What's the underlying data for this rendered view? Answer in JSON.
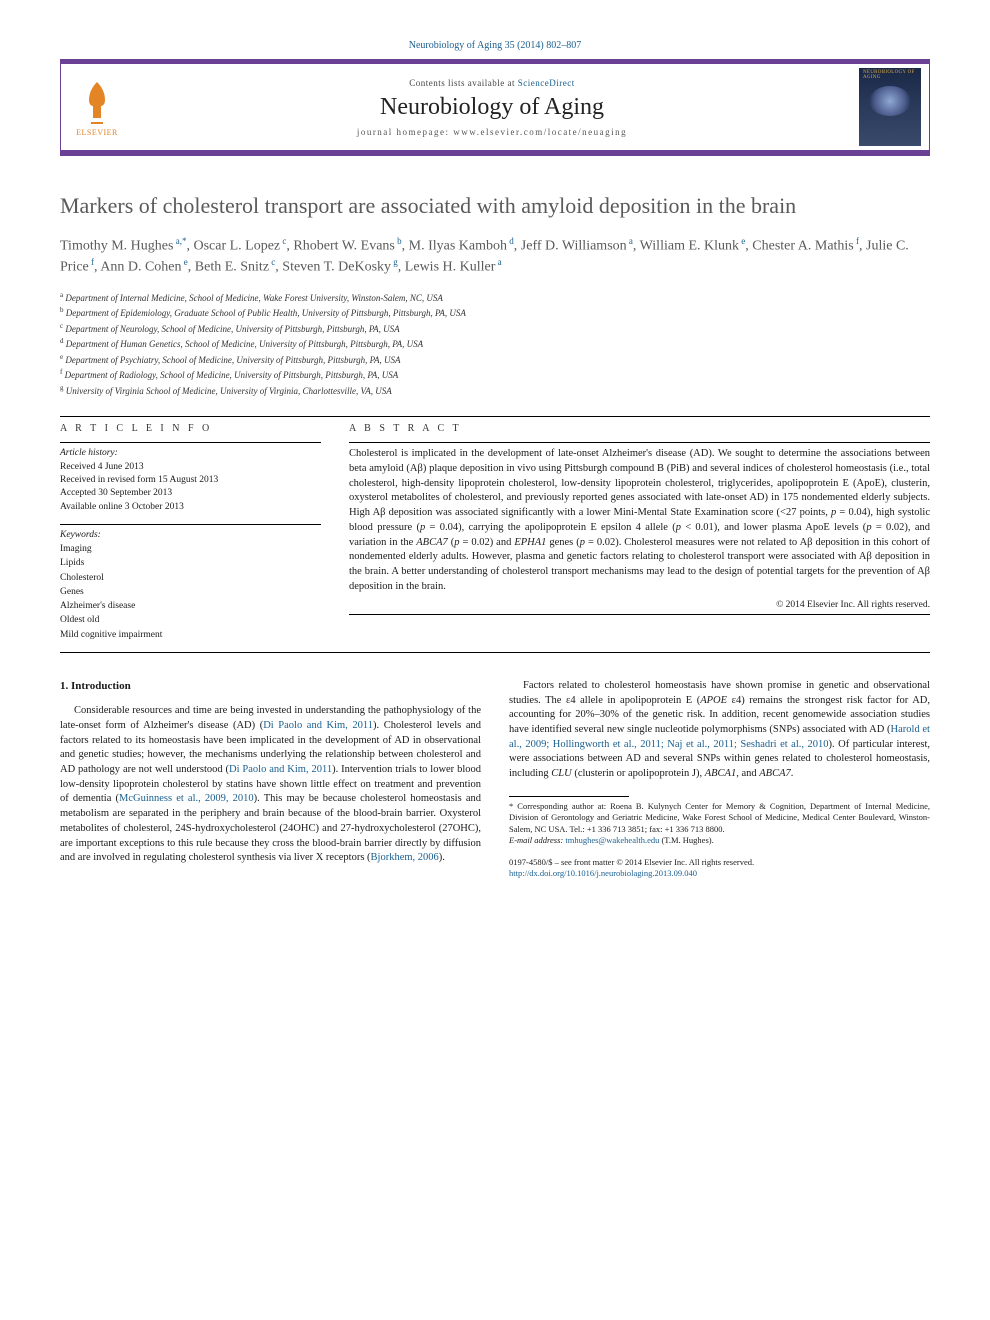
{
  "journal_ref": "Neurobiology of Aging 35 (2014) 802–807",
  "header": {
    "contents_prefix": "Contents lists available at ",
    "contents_link": "ScienceDirect",
    "journal_name": "Neurobiology of Aging",
    "homepage_prefix": "journal homepage: ",
    "homepage_url": "www.elsevier.com/locate/neuaging",
    "publisher": "ELSEVIER",
    "cover_label": "NEUROBIOLOGY OF AGING"
  },
  "title": "Markers of cholesterol transport are associated with amyloid deposition in the brain",
  "authors_html": "Timothy M. Hughes<sup> a,*</sup>, Oscar L. Lopez<sup> c</sup>, Rhobert W. Evans<sup> b</sup>, M. Ilyas Kamboh<sup> d</sup>, Jeff D. Williamson<sup> a</sup>, William E. Klunk<sup> e</sup>, Chester A. Mathis<sup> f</sup>, Julie C. Price<sup> f</sup>, Ann D. Cohen<sup> e</sup>, Beth E. Snitz<sup> c</sup>, Steven T. DeKosky<sup> g</sup>, Lewis H. Kuller<sup> a</sup>",
  "affiliations": [
    {
      "sup": "a",
      "text": "Department of Internal Medicine, School of Medicine, Wake Forest University, Winston-Salem, NC, USA"
    },
    {
      "sup": "b",
      "text": "Department of Epidemiology, Graduate School of Public Health, University of Pittsburgh, Pittsburgh, PA, USA"
    },
    {
      "sup": "c",
      "text": "Department of Neurology, School of Medicine, University of Pittsburgh, Pittsburgh, PA, USA"
    },
    {
      "sup": "d",
      "text": "Department of Human Genetics, School of Medicine, University of Pittsburgh, Pittsburgh, PA, USA"
    },
    {
      "sup": "e",
      "text": "Department of Psychiatry, School of Medicine, University of Pittsburgh, Pittsburgh, PA, USA"
    },
    {
      "sup": "f",
      "text": "Department of Radiology, School of Medicine, University of Pittsburgh, Pittsburgh, PA, USA"
    },
    {
      "sup": "g",
      "text": "University of Virginia School of Medicine, University of Virginia, Charlottesville, VA, USA"
    }
  ],
  "info": {
    "label": "A R T I C L E   I N F O",
    "history_heading": "Article history:",
    "history": [
      "Received 4 June 2013",
      "Received in revised form 15 August 2013",
      "Accepted 30 September 2013",
      "Available online 3 October 2013"
    ],
    "keywords_heading": "Keywords:",
    "keywords": [
      "Imaging",
      "Lipids",
      "Cholesterol",
      "Genes",
      "Alzheimer's disease",
      "Oldest old",
      "Mild cognitive impairment"
    ]
  },
  "abstract": {
    "label": "A B S T R A C T",
    "text": "Cholesterol is implicated in the development of late-onset Alzheimer's disease (AD). We sought to determine the associations between beta amyloid (Aβ) plaque deposition in vivo using Pittsburgh compound B (PiB) and several indices of cholesterol homeostasis (i.e., total cholesterol, high-density lipoprotein cholesterol, low-density lipoprotein cholesterol, triglycerides, apolipoprotein E (ApoE), clusterin, oxysterol metabolites of cholesterol, and previously reported genes associated with late-onset AD) in 175 nondemented elderly subjects. High Aβ deposition was associated significantly with a lower Mini-Mental State Examination score (<27 points, p = 0.04), high systolic blood pressure (p = 0.04), carrying the apolipoprotein E epsilon 4 allele (p < 0.01), and lower plasma ApoE levels (p = 0.02), and variation in the ABCA7 (p = 0.02) and EPHA1 genes (p = 0.02). Cholesterol measures were not related to Aβ deposition in this cohort of nondemented elderly adults. However, plasma and genetic factors relating to cholesterol transport were associated with Aβ deposition in the brain. A better understanding of cholesterol transport mechanisms may lead to the design of potential targets for the prevention of Aβ deposition in the brain.",
    "copyright": "© 2014 Elsevier Inc. All rights reserved."
  },
  "section1": {
    "heading": "1. Introduction",
    "p1_a": "Considerable resources and time are being invested in understanding the pathophysiology of the late-onset form of Alzheimer's disease (AD) (",
    "p1_cite1": "Di Paolo and Kim, 2011",
    "p1_b": "). Cholesterol levels and factors related to its homeostasis have been implicated in the development of AD in observational and genetic studies; however, the mechanisms underlying the relationship between cholesterol and AD pathology are not well understood (",
    "p1_cite2": "Di Paolo and Kim, 2011",
    "p1_c": "). Intervention trials to lower blood low-density lipoprotein cholesterol by statins have shown little effect on treatment and prevention of dementia (",
    "p1_cite3": "McGuinness et al., 2009, 2010",
    "p1_d": "). This may ",
    "p1_e": "be because cholesterol homeostasis and metabolism are separated in the periphery and brain because of the blood-brain barrier. Oxysterol metabolites of cholesterol, 24S-hydroxycholesterol (24OHC) and 27-hydroxycholesterol (27OHC), are important exceptions to this rule because they cross the blood-brain barrier directly by diffusion and are involved in regulating cholesterol synthesis via liver X receptors (",
    "p1_cite4": "Bjorkhem, 2006",
    "p1_f": ").",
    "p2_a": "Factors related to cholesterol homeostasis have shown promise in genetic and observational studies. The ε4 allele in apolipoprotein E (",
    "p2_ital1": "APOE",
    "p2_b": " ε4) remains the strongest risk factor for AD, accounting for 20%–30% of the genetic risk. In addition, recent genomewide association studies have identified several new single nucleotide polymorphisms (SNPs) associated with AD (",
    "p2_cite1": "Harold et al., 2009; Hollingworth et al., 2011; Naj et al., 2011; Seshadri et al., 2010",
    "p2_c": "). Of particular interest, were associations between AD and several SNPs within genes related to cholesterol homeostasis, including ",
    "p2_ital2": "CLU",
    "p2_d": " (clusterin or apolipoprotein J), ",
    "p2_ital3": "ABCA1",
    "p2_e": ", and ",
    "p2_ital4": "ABCA7",
    "p2_f": "."
  },
  "footnote": {
    "corr_a": "* Corresponding author at: Roena B. Kulynych Center for Memory & Cognition, Department of Internal Medicine, Division of Gerontology and Geriatric Medicine, Wake Forest School of Medicine, Medical Center Boulevard, Winston-Salem, NC USA. Tel.: +1 336 713 3851; fax: +1 336 713 8800.",
    "email_label": "E-mail address: ",
    "email": "tmhughes@wakehealth.edu",
    "email_suffix": " (T.M. Hughes)."
  },
  "bottom": {
    "line1": "0197-4580/$ – see front matter © 2014 Elsevier Inc. All rights reserved.",
    "doi": "http://dx.doi.org/10.1016/j.neurobiolaging.2013.09.040"
  }
}
